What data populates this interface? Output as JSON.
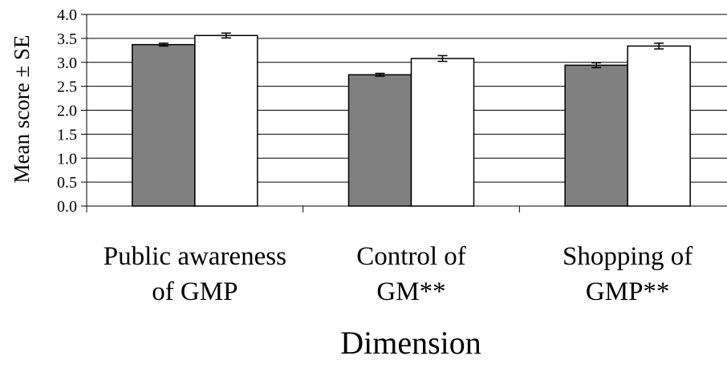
{
  "chart_data": {
    "type": "bar",
    "categories": [
      [
        "Public awareness",
        "of GMP"
      ],
      [
        "Control of",
        "GM**"
      ],
      [
        "Shopping of",
        "GMP**"
      ]
    ],
    "series": [
      {
        "color": "#808080",
        "values": [
          3.37,
          2.74,
          2.94
        ],
        "errors": [
          0.03,
          0.03,
          0.05
        ]
      },
      {
        "color": "#ffffff",
        "values": [
          3.56,
          3.08,
          3.34
        ],
        "errors": [
          0.05,
          0.06,
          0.06
        ]
      }
    ],
    "ylim": [
      0,
      4
    ],
    "yticks": [
      "0.0",
      "0.5",
      "1.0",
      "1.5",
      "2.0",
      "2.5",
      "3.0",
      "3.5",
      "4.0"
    ],
    "ylabel": "Mean score ± SE",
    "xlabel": "Dimension",
    "grid": true
  }
}
